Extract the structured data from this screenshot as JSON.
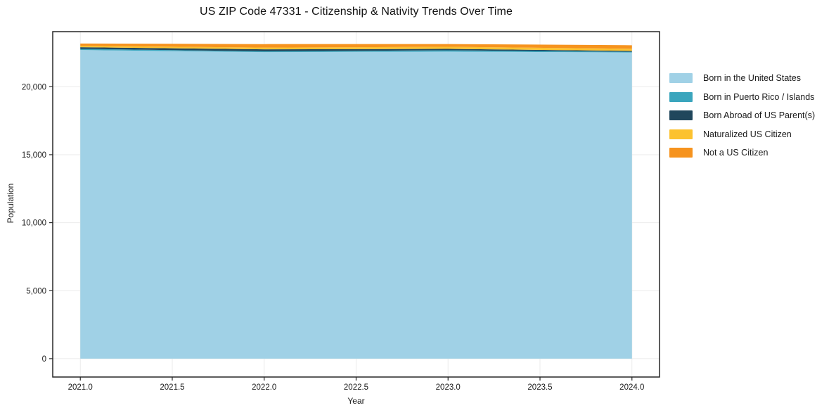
{
  "figure": {
    "title": "US ZIP Code 47331 - Citizenship & Nativity Trends Over Time"
  },
  "chart_data": {
    "type": "area",
    "stacked": true,
    "title": "US ZIP Code 47331 - Citizenship & Nativity Trends Over Time",
    "xlabel": "Year",
    "ylabel": "Population",
    "x": [
      2021,
      2022,
      2023,
      2024
    ],
    "series": [
      {
        "name": "Born in the United States",
        "color": "#A0D1E6",
        "values": [
          22700,
          22545,
          22580,
          22520
        ]
      },
      {
        "name": "Born in Puerto Rico / Islands",
        "color": "#3AA5BD",
        "values": [
          85,
          60,
          100,
          50
        ]
      },
      {
        "name": "Born Abroad of US Parent(s)",
        "color": "#20475C",
        "values": [
          120,
          145,
          100,
          65
        ]
      },
      {
        "name": "Naturalized US Citizen",
        "color": "#FCC22F",
        "values": [
          105,
          130,
          155,
          155
        ]
      },
      {
        "name": "Not a US Citizen",
        "color": "#F6931E",
        "values": [
          170,
          255,
          205,
          260
        ]
      }
    ],
    "xticks": [
      2021.0,
      2021.5,
      2022.0,
      2022.5,
      2023.0,
      2023.5,
      2024.0
    ],
    "xtick_labels": [
      "2021.0",
      "2021.5",
      "2022.0",
      "2022.5",
      "2023.0",
      "2023.5",
      "2024.0"
    ],
    "yticks": [
      0,
      5000,
      10000,
      15000,
      20000
    ],
    "ytick_labels": [
      "0",
      "5,000",
      "10,000",
      "15,000",
      "20,000"
    ],
    "xlim": [
      2020.85,
      2024.15
    ],
    "ylim": [
      -1350,
      24050
    ],
    "grid": true,
    "grid_color": "#ebebeb",
    "axis_color": "#262626",
    "tick_label_color": "#1a1a1a",
    "legend_position": "right-outside"
  }
}
